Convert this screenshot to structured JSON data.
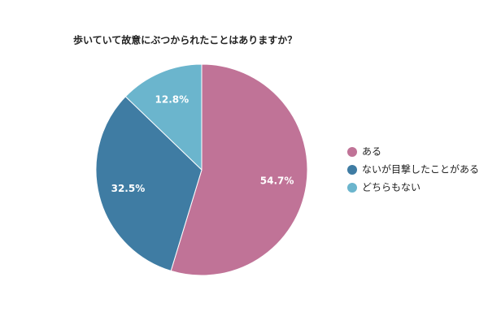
{
  "chart_data": {
    "type": "pie",
    "title": "歩いていて故意にぶつかられたことはありますか？",
    "categories": [
      "ある",
      "ないが目撃したことがある",
      "どちらもない"
    ],
    "values": [
      54.7,
      32.5,
      12.8
    ],
    "value_labels": [
      "54.7%",
      "32.5%",
      "12.8%"
    ],
    "colors": [
      "#c07397",
      "#3f7ca3",
      "#6bb5cd"
    ],
    "legend": "right"
  }
}
